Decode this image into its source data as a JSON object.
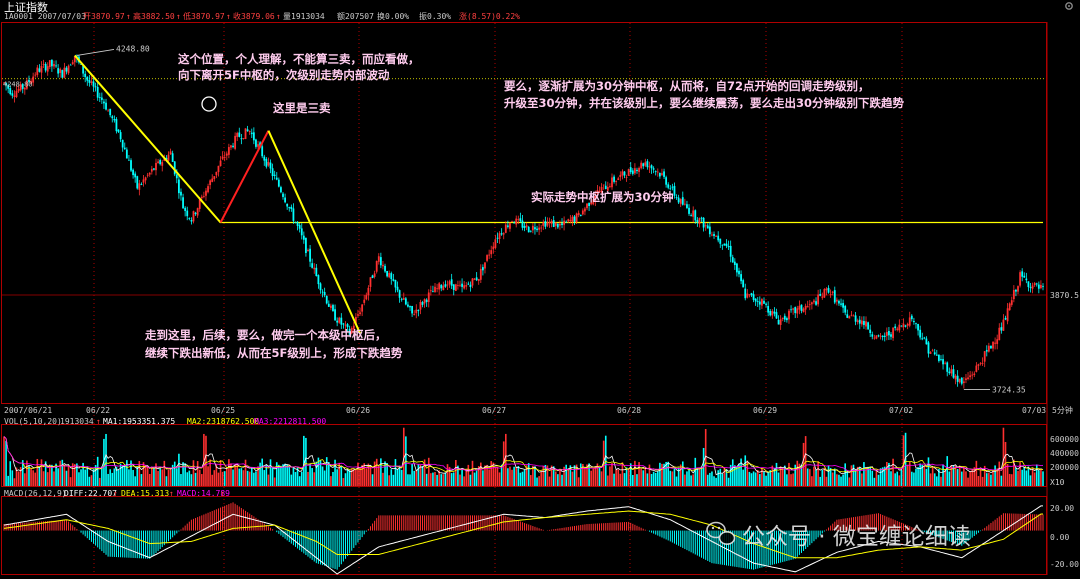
{
  "app": {
    "title": "上证指数",
    "settings_icon": "gear-icon"
  },
  "info_bar": {
    "code_date": "1A0001  2007/07/03",
    "open": "开3870.97",
    "high": "高3882.50",
    "low": "低3870.97",
    "close": "收3879.06",
    "volume": "量1913034",
    "amount": "额207507",
    "turnover": "换0.00%",
    "amplitude": "振0.30%",
    "change": "涨(8.57)0.22%",
    "up_arrow": "↑"
  },
  "price_labels": {
    "high_mark": "4248.80",
    "left_axis_mark": "4248.80",
    "current_price": "3870.5",
    "low_mark": "3724.35"
  },
  "date_axis": {
    "labels": [
      "2007/06/21",
      "06/22",
      "06/25",
      "06/26",
      "06/27",
      "06/28",
      "06/29",
      "07/02",
      "07/03"
    ],
    "period": "5分钟"
  },
  "volume_panel": {
    "header": "VOL(5,10,20)",
    "vol": "1913034",
    "ma1": "MA1:1953351.375",
    "ma2": "MA2:2318762.500",
    "ma3": "MA3:2212811.500",
    "axis": [
      "600000",
      "400000",
      "200000",
      "X10"
    ]
  },
  "macd_panel": {
    "header": "MACD(26,12,9)",
    "diff": "DIFF:22.707",
    "dea": "DEA:15.313",
    "macd": "MACD:14.789",
    "axis": [
      "20.00",
      "0.00",
      "-20.00"
    ]
  },
  "annotations": {
    "note1_line1": "这个位置，个人理解，不能算三卖，而应看做，",
    "note1_line2": "向下离开5F中枢的，次级别走势内部波动",
    "note2": "这里是三卖",
    "note3_line1": "要么，逐渐扩展为30分钟中枢，从而将，自72点开始的回调走势级别，",
    "note3_line2": "升级至30分钟，并在该级别上，要么继续震荡，要么走出30分钟级别下跌趋势",
    "note4": "实际走势中枢扩展为30分钟",
    "note5_line1": "走到这里，后续，要么，做完一个本级中枢后，",
    "note5_line2": "继续下跌出新低，从而在5F级别上，形成下跌趋势"
  },
  "watermark": "公众号 · 微宝缠论细读",
  "colors": {
    "up": "#ff3030",
    "down": "#00ffff",
    "axis": "#b00000",
    "annotation_text": "#ffccee",
    "trend_line": "#ffff00",
    "red_segment": "#ff2020",
    "ma1": "#ffffff",
    "ma2": "#ffff00",
    "ma3": "#ff00ff"
  },
  "chart_data": {
    "type": "candlestick",
    "title": "上证指数",
    "interval": "5分钟",
    "ylim": [
      3700,
      4300
    ],
    "reference_level": 4212,
    "zs_upper": 3985,
    "key_points": [
      {
        "label": "4248.80",
        "value": 4248.8
      },
      {
        "label": "3724.35",
        "value": 3724.35
      },
      {
        "label": "3870.5",
        "value": 3870.5
      }
    ],
    "trend_segments": [
      {
        "from_value": 4248.8,
        "to_value": 3985,
        "color": "#ffff00"
      },
      {
        "from_value": 3985,
        "to_value": 4130,
        "color": "#ff2020"
      },
      {
        "from_value": 4130,
        "to_value": 3810,
        "color": "#ffff00"
      }
    ],
    "price_path": [
      [
        0,
        4205
      ],
      [
        4,
        4190
      ],
      [
        10,
        4200
      ],
      [
        16,
        4225
      ],
      [
        22,
        4235
      ],
      [
        28,
        4220
      ],
      [
        34,
        4248.8
      ],
      [
        40,
        4210
      ],
      [
        48,
        4175
      ],
      [
        56,
        4120
      ],
      [
        64,
        4040
      ],
      [
        72,
        4070
      ],
      [
        80,
        4095
      ],
      [
        86,
        4010
      ],
      [
        90,
        3990
      ],
      [
        96,
        4030
      ],
      [
        104,
        4080
      ],
      [
        112,
        4120
      ],
      [
        118,
        4130
      ],
      [
        126,
        4080
      ],
      [
        134,
        4030
      ],
      [
        142,
        3970
      ],
      [
        150,
        3900
      ],
      [
        158,
        3840
      ],
      [
        166,
        3810
      ],
      [
        172,
        3855
      ],
      [
        180,
        3930
      ],
      [
        188,
        3880
      ],
      [
        196,
        3840
      ],
      [
        204,
        3870
      ],
      [
        212,
        3890
      ],
      [
        220,
        3880
      ],
      [
        228,
        3900
      ],
      [
        236,
        3960
      ],
      [
        244,
        3990
      ],
      [
        252,
        3975
      ],
      [
        260,
        3985
      ],
      [
        268,
        3980
      ],
      [
        276,
        3995
      ],
      [
        284,
        4030
      ],
      [
        292,
        4050
      ],
      [
        300,
        4065
      ],
      [
        308,
        4080
      ],
      [
        316,
        4060
      ],
      [
        324,
        4020
      ],
      [
        332,
        3995
      ],
      [
        340,
        3970
      ],
      [
        348,
        3945
      ],
      [
        356,
        3870
      ],
      [
        364,
        3860
      ],
      [
        372,
        3830
      ],
      [
        380,
        3845
      ],
      [
        388,
        3855
      ],
      [
        396,
        3880
      ],
      [
        404,
        3840
      ],
      [
        412,
        3830
      ],
      [
        420,
        3800
      ],
      [
        428,
        3815
      ],
      [
        436,
        3835
      ],
      [
        444,
        3785
      ],
      [
        452,
        3760
      ],
      [
        460,
        3730
      ],
      [
        466,
        3750
      ],
      [
        474,
        3790
      ],
      [
        480,
        3825
      ],
      [
        488,
        3900
      ],
      [
        494,
        3885
      ],
      [
        498,
        3880
      ]
    ],
    "volume_ylim": [
      0,
      700000
    ],
    "volume_ticks": [
      600000,
      400000,
      200000
    ],
    "macd_ylim": [
      -40,
      30
    ],
    "macd_ticks": [
      20,
      0,
      -20
    ],
    "diff_path": [
      [
        0,
        5
      ],
      [
        30,
        15
      ],
      [
        50,
        -10
      ],
      [
        70,
        -25
      ],
      [
        90,
        -5
      ],
      [
        110,
        15
      ],
      [
        130,
        5
      ],
      [
        150,
        -25
      ],
      [
        160,
        -40
      ],
      [
        180,
        -15
      ],
      [
        200,
        -5
      ],
      [
        220,
        5
      ],
      [
        240,
        15
      ],
      [
        260,
        12
      ],
      [
        280,
        18
      ],
      [
        300,
        22
      ],
      [
        320,
        10
      ],
      [
        340,
        -10
      ],
      [
        360,
        -30
      ],
      [
        380,
        -38
      ],
      [
        400,
        -20
      ],
      [
        420,
        -10
      ],
      [
        440,
        -15
      ],
      [
        460,
        -25
      ],
      [
        480,
        0
      ],
      [
        498,
        22.7
      ]
    ],
    "dea_path": [
      [
        0,
        2
      ],
      [
        30,
        10
      ],
      [
        50,
        2
      ],
      [
        70,
        -12
      ],
      [
        90,
        -10
      ],
      [
        110,
        2
      ],
      [
        130,
        5
      ],
      [
        150,
        -10
      ],
      [
        160,
        -22
      ],
      [
        180,
        -22
      ],
      [
        200,
        -12
      ],
      [
        220,
        -2
      ],
      [
        240,
        8
      ],
      [
        260,
        12
      ],
      [
        280,
        15
      ],
      [
        300,
        18
      ],
      [
        320,
        15
      ],
      [
        340,
        5
      ],
      [
        360,
        -12
      ],
      [
        380,
        -25
      ],
      [
        400,
        -25
      ],
      [
        420,
        -18
      ],
      [
        440,
        -15
      ],
      [
        460,
        -18
      ],
      [
        480,
        -8
      ],
      [
        498,
        15.3
      ]
    ]
  }
}
